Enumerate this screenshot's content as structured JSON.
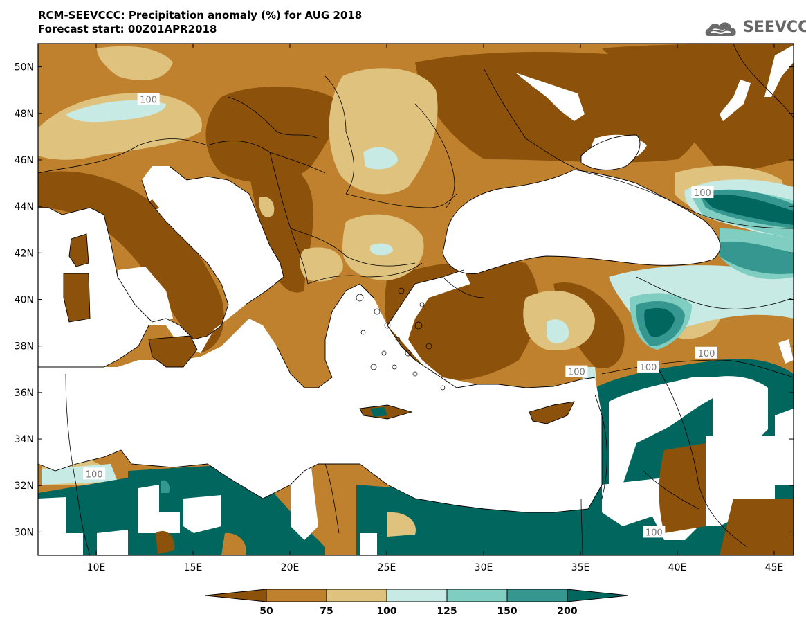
{
  "header": {
    "title_line1": "RCM-SEEVCCC: Precipitation anomaly (%) for AUG 2018",
    "title_line2": "Forecast start: 00Z01APR2018",
    "logo_text": "SEEVCCC"
  },
  "map": {
    "lon_range": [
      7,
      46
    ],
    "lat_range": [
      29,
      51
    ],
    "lat_ticks": [
      {
        "value": 50,
        "label": "50N"
      },
      {
        "value": 48,
        "label": "48N"
      },
      {
        "value": 46,
        "label": "46N"
      },
      {
        "value": 44,
        "label": "44N"
      },
      {
        "value": 42,
        "label": "42N"
      },
      {
        "value": 40,
        "label": "40N"
      },
      {
        "value": 38,
        "label": "38N"
      },
      {
        "value": 36,
        "label": "36N"
      },
      {
        "value": 34,
        "label": "34N"
      },
      {
        "value": 32,
        "label": "32N"
      },
      {
        "value": 30,
        "label": "30N"
      }
    ],
    "lon_ticks": [
      {
        "value": 10,
        "label": "10E"
      },
      {
        "value": 15,
        "label": "15E"
      },
      {
        "value": 20,
        "label": "20E"
      },
      {
        "value": 25,
        "label": "25E"
      },
      {
        "value": 30,
        "label": "30E"
      },
      {
        "value": 35,
        "label": "35E"
      },
      {
        "value": 40,
        "label": "40E"
      },
      {
        "value": 45,
        "label": "45E"
      }
    ],
    "contour_labels": [
      {
        "text": "100",
        "lon": 12.7,
        "lat": 48.6
      },
      {
        "text": "100",
        "lon": 41.3,
        "lat": 44.6
      },
      {
        "text": "100",
        "lon": 34.8,
        "lat": 36.9
      },
      {
        "text": "100",
        "lon": 38.5,
        "lat": 37.1
      },
      {
        "text": "100",
        "lon": 41.5,
        "lat": 37.7
      },
      {
        "text": "100",
        "lon": 9.9,
        "lat": 32.5
      },
      {
        "text": "100",
        "lon": 38.8,
        "lat": 30.0
      }
    ]
  },
  "colorbar": {
    "levels": [
      "50",
      "75",
      "100",
      "125",
      "150",
      "200"
    ],
    "colors": [
      "#8c510a",
      "#bf812d",
      "#dfc27d",
      "#c7eae5",
      "#80cdc1",
      "#35978f",
      "#01665e"
    ]
  }
}
